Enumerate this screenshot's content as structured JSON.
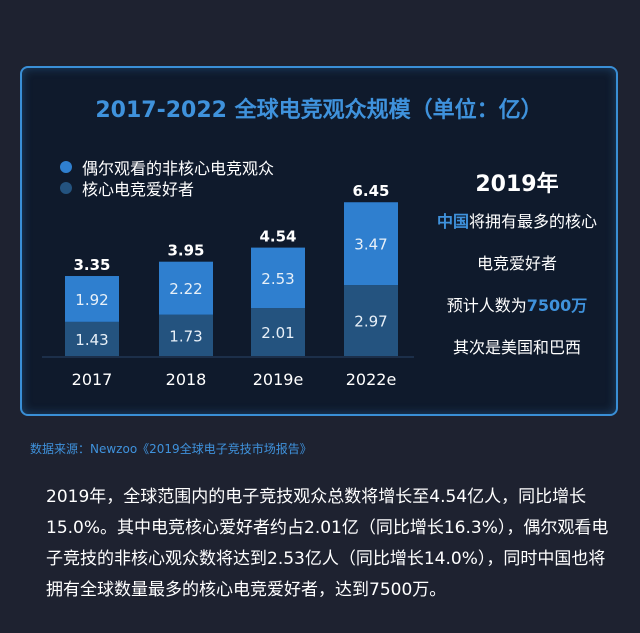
{
  "card": {
    "title": "2017-2022 全球电竞观众规模（单位：亿）",
    "legend": [
      {
        "label": "偶尔观看的非核心电竞观众",
        "color": "#2f7fcf"
      },
      {
        "label": "核心电竞爱好者",
        "color": "#24537f"
      }
    ]
  },
  "chart_data": {
    "type": "bar",
    "stacked": true,
    "categories": [
      "2017",
      "2018",
      "2019e",
      "2022e"
    ],
    "series": [
      {
        "name": "核心电竞爱好者",
        "values": [
          1.43,
          1.73,
          2.01,
          2.97
        ],
        "color": "#24537f"
      },
      {
        "name": "偶尔观看的非核心电竞观众",
        "values": [
          1.92,
          2.22,
          2.53,
          3.47
        ],
        "color": "#2f7fcf"
      }
    ],
    "totals": [
      "3.35",
      "3.95",
      "4.54",
      "6.45"
    ],
    "segment_labels": [
      [
        "1.43",
        "1.73",
        "2.01",
        "2.97"
      ],
      [
        "1.92",
        "2.22",
        "2.53",
        "3.47"
      ]
    ],
    "title": "2017-2022 全球电竞观众规模（单位：亿）",
    "xlabel": "",
    "ylabel": "",
    "ylim": [
      0,
      6.45
    ],
    "grid": false,
    "legend": "top-left"
  },
  "side": {
    "title": "2019年",
    "line1_highlight": "中国",
    "line1_rest": "将拥有最多的核心",
    "line2": "电竞爱好者",
    "line3_prefix": "预计人数为",
    "line3_highlight": "7500万",
    "line4": "其次是美国和巴西"
  },
  "source": "数据来源：Newzoo《2019全球电子竞技市场报告》",
  "paragraph": "2019年，全球范围内的电子竞技观众总数将增长至4.54亿人，同比增长15.0%。其中电竞核心爱好者约占2.01亿（同比增长16.3%），偶尔观看电子竞技的非核心观众数将达到2.53亿人（同比增长14.0%），同时中国也将拥有全球数量最多的核心电竞爱好者，达到7500万。"
}
